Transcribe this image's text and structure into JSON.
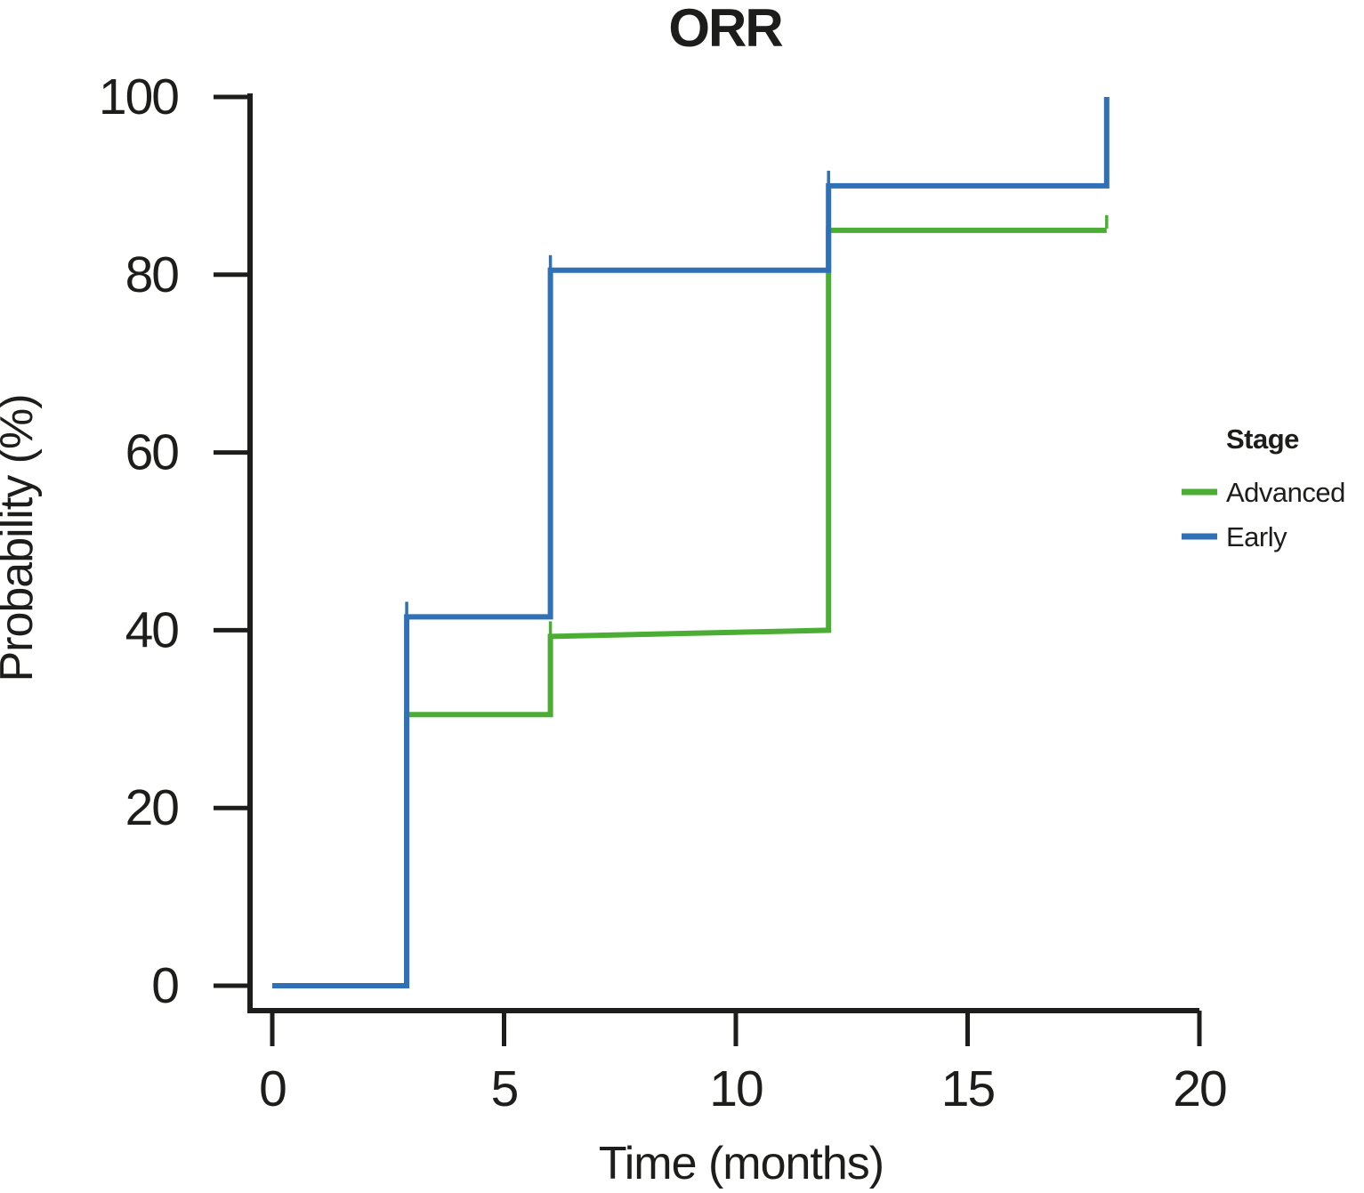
{
  "chart_data": {
    "type": "line",
    "variant": "kaplan_meier_step",
    "title": "ORR",
    "xlabel": "Time (months)",
    "ylabel": "Probability (%)",
    "xlim": [
      0,
      20
    ],
    "ylim": [
      0,
      100
    ],
    "x_ticks": [
      0,
      5,
      10,
      15,
      20
    ],
    "y_ticks": [
      0,
      20,
      40,
      60,
      80,
      100
    ],
    "grid": false,
    "background": "#ffffff",
    "axis_color": "#1d1d1b",
    "legend_title": "Stage",
    "legend_position": "right",
    "series": [
      {
        "name": "Advanced",
        "color": "#4bad34",
        "points": [
          [
            0,
            0
          ],
          [
            2.9,
            0
          ],
          [
            2.9,
            30.5
          ],
          [
            6,
            30.5
          ],
          [
            6,
            39.3
          ],
          [
            12,
            40
          ],
          [
            12,
            85
          ],
          [
            18,
            85
          ]
        ],
        "censor_marks": [
          [
            6,
            39.3
          ],
          [
            18,
            85
          ]
        ]
      },
      {
        "name": "Early",
        "color": "#2f70b6",
        "points": [
          [
            0,
            0
          ],
          [
            2.9,
            0
          ],
          [
            2.9,
            41.5
          ],
          [
            6,
            41.5
          ],
          [
            6,
            80.5
          ],
          [
            12,
            80.5
          ],
          [
            12,
            90
          ],
          [
            18,
            90
          ],
          [
            18,
            100
          ]
        ],
        "censor_marks": [
          [
            2.9,
            41.5
          ],
          [
            6,
            80.5
          ],
          [
            12,
            90
          ]
        ]
      }
    ]
  }
}
